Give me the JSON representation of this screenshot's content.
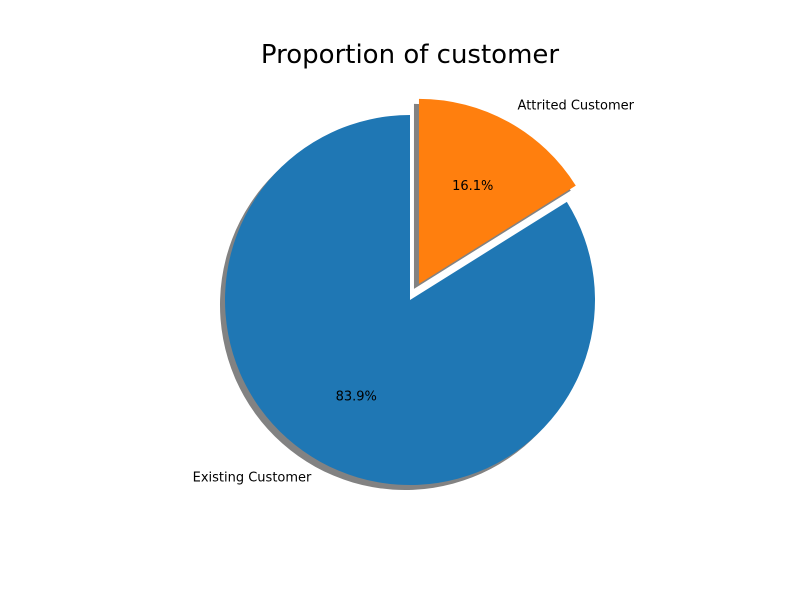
{
  "chart_data": {
    "type": "pie",
    "title": "Proportion of customer",
    "categories": [
      "Existing Customer",
      "Attrited Customer"
    ],
    "values": [
      83.9,
      16.1
    ],
    "value_labels": [
      "83.9%",
      "16.1%"
    ],
    "colors": [
      "#1f77b4",
      "#ff7f0e"
    ],
    "exploded": [
      false,
      true
    ],
    "shadow": true,
    "start_angle_deg": 90,
    "direction": "counterclockwise"
  }
}
